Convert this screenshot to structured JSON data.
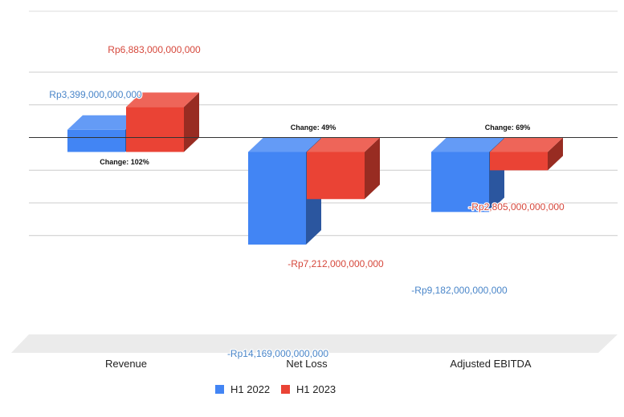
{
  "chart_data": {
    "type": "bar",
    "title": "",
    "xlabel": "",
    "ylabel": "",
    "three_d": true,
    "grid": true,
    "legend": "bottom",
    "ylim": [
      -15000000000000,
      10000000000000
    ],
    "categories": [
      "Revenue",
      "Net Loss",
      "Adjusted EBITDA"
    ],
    "series": [
      {
        "name": "H1 2022",
        "color": "#4285f4",
        "values": [
          3399000000000,
          -14169000000000,
          -9182000000000
        ],
        "labels": [
          "Rp3,399,000,000,000",
          "-Rp14,169,000,000,000",
          "-Rp9,182,000,000,000"
        ]
      },
      {
        "name": "H1 2023",
        "color": "#ea4335",
        "values": [
          6883000000000,
          -7212000000000,
          -2805000000000
        ],
        "labels": [
          "Rp6,883,000,000,000",
          "-Rp7,212,000,000,000",
          "-Rp2,805,000,000,000"
        ]
      }
    ],
    "annotations": [
      "Change: 102%",
      "Change: 49%",
      "Change: 69%"
    ]
  }
}
